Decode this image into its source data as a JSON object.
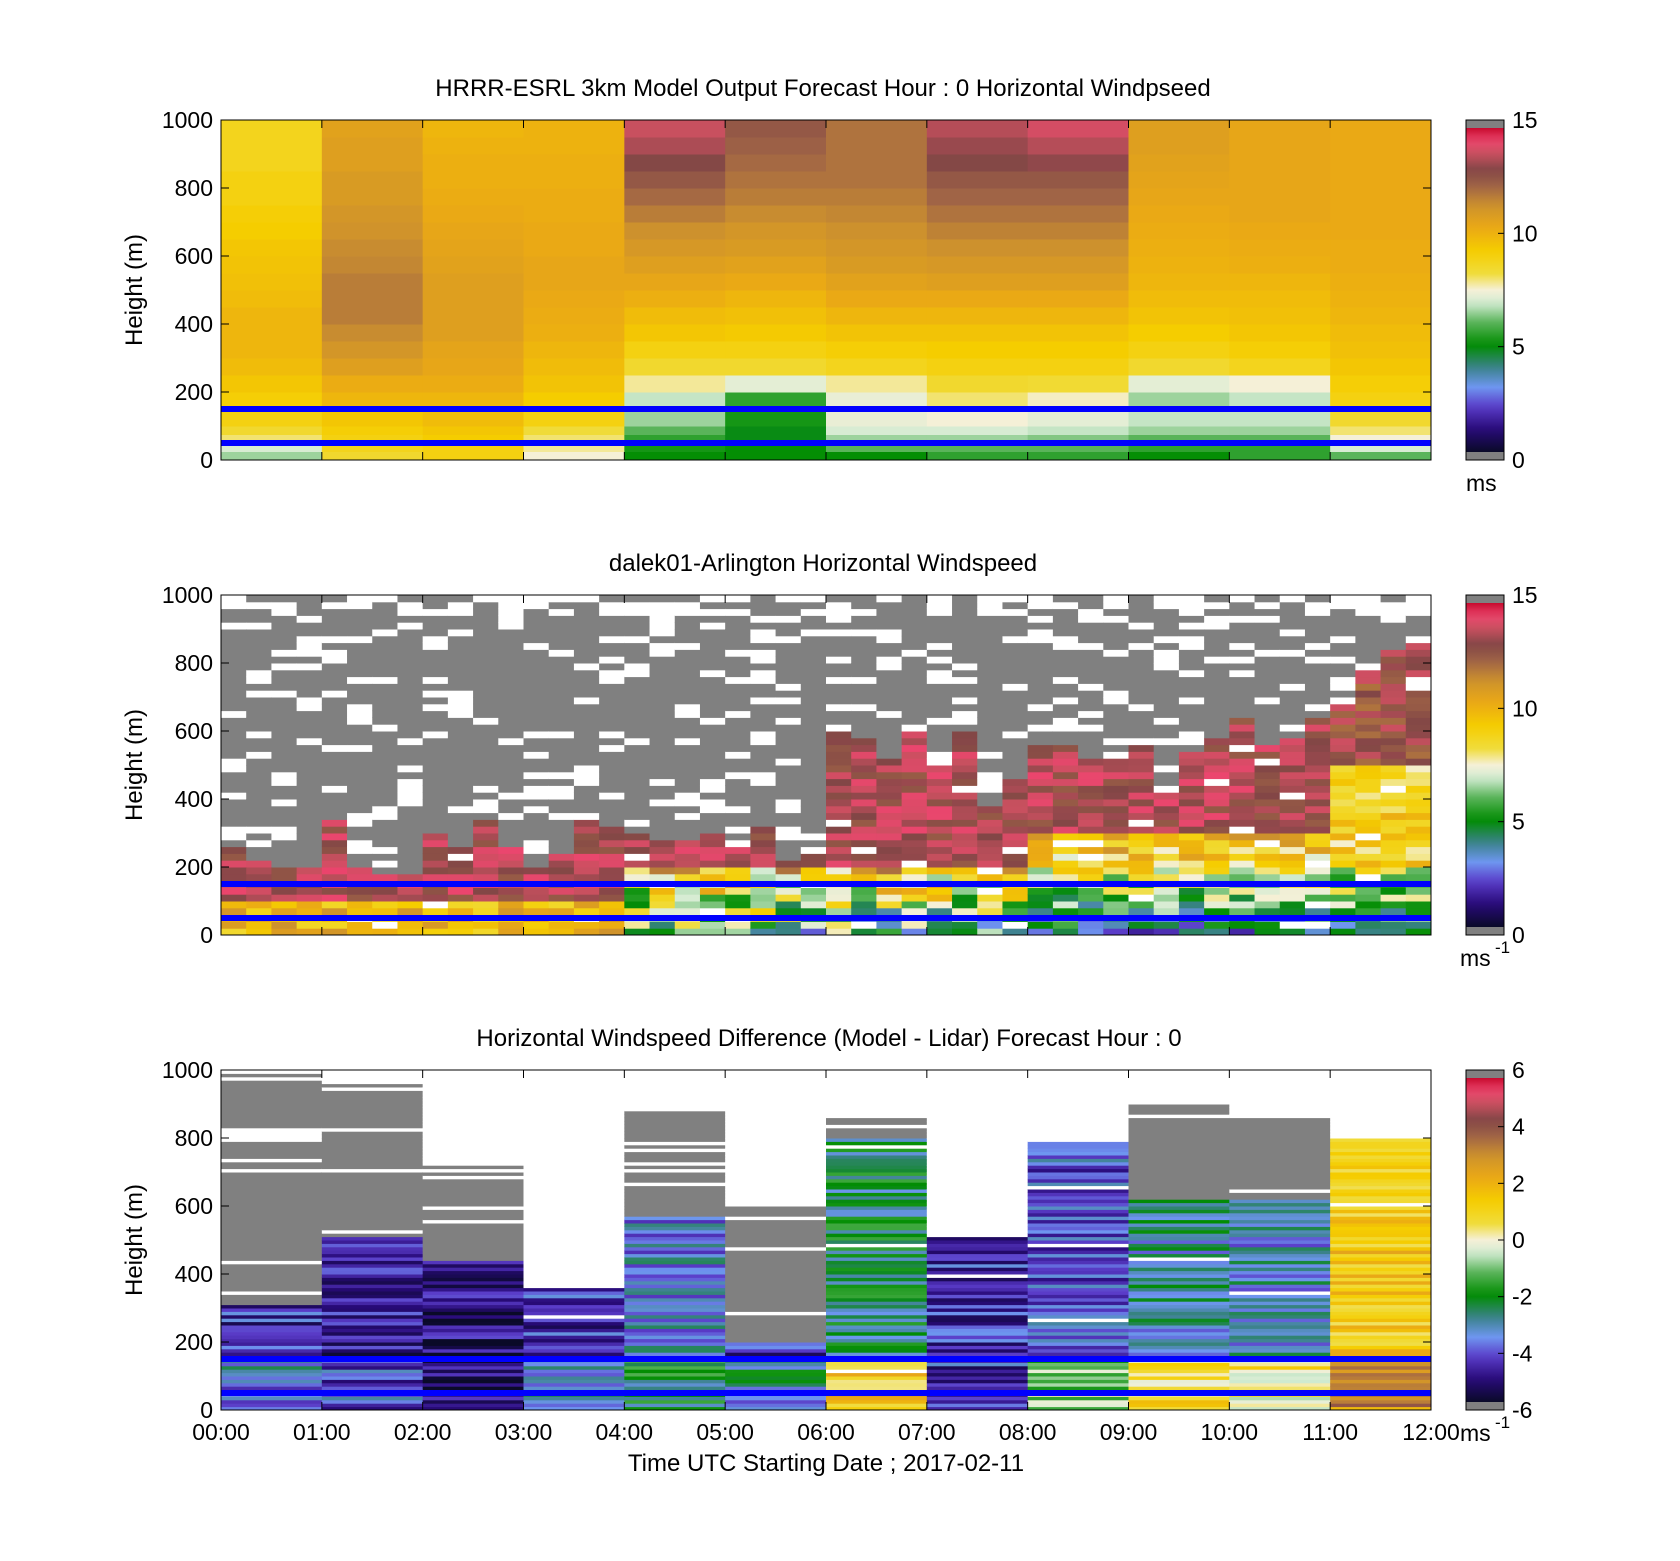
{
  "figure": {
    "xlabel": "Time UTC  Starting Date ; 2017-02-11",
    "xticks": [
      "00:00",
      "01:00",
      "02:00",
      "03:00",
      "04:00",
      "05:00",
      "06:00",
      "07:00",
      "08:00",
      "09:00",
      "10:00",
      "11:00",
      "12:00"
    ],
    "x_range_hours": [
      0,
      12
    ],
    "reference_lines_height_m": [
      150,
      50
    ],
    "reference_line_color": "#0000ff"
  },
  "chart_data": [
    {
      "type": "heatmap",
      "title": "HRRR-ESRL 3km Model Output   Forecast Hour : 0 Horizontal Windpseed",
      "ylabel": "Height (m)",
      "ylim": [
        0,
        1000
      ],
      "yticks": [
        "0",
        "200",
        "400",
        "600",
        "800",
        "1000"
      ],
      "colorbar": {
        "range": [
          0,
          15
        ],
        "ticks": [
          "0",
          "5",
          "10",
          "15"
        ],
        "unit": "ms"
      },
      "x_hours": [
        0,
        1,
        2,
        3,
        4,
        5,
        6,
        7,
        8,
        9,
        10,
        11
      ],
      "heights_m": [
        25,
        50,
        75,
        100,
        150,
        200,
        250,
        300,
        350,
        400,
        450,
        500,
        550,
        600,
        650,
        700,
        750,
        800,
        850,
        900,
        950,
        1000
      ],
      "values_ms": [
        [
          6.5,
          8.5,
          9.0,
          7.5,
          5.0,
          5.0,
          5.0,
          5.5,
          5.5,
          5.0,
          5.5,
          6.0
        ],
        [
          7.0,
          8.8,
          9.0,
          7.8,
          5.2,
          5.0,
          6.0,
          6.0,
          6.0,
          5.5,
          5.5,
          7.0
        ],
        [
          8.0,
          9.0,
          9.3,
          8.0,
          5.5,
          4.8,
          6.5,
          6.5,
          6.3,
          6.0,
          6.0,
          7.5
        ],
        [
          8.5,
          9.2,
          9.5,
          8.3,
          6.0,
          4.8,
          7.0,
          7.0,
          6.8,
          6.5,
          6.5,
          8.0
        ],
        [
          9.0,
          9.5,
          9.8,
          9.0,
          6.5,
          5.2,
          7.3,
          7.5,
          7.2,
          6.8,
          6.8,
          8.5
        ],
        [
          9.2,
          10.0,
          10.0,
          9.3,
          6.8,
          5.5,
          7.3,
          8.0,
          7.6,
          6.5,
          6.8,
          9.0
        ],
        [
          9.5,
          10.3,
          10.3,
          9.6,
          7.8,
          7.2,
          7.8,
          8.5,
          8.4,
          7.2,
          7.5,
          9.2
        ],
        [
          9.8,
          10.8,
          10.5,
          9.8,
          8.5,
          8.5,
          8.8,
          9.0,
          9.0,
          8.5,
          8.8,
          9.5
        ],
        [
          10.0,
          11.2,
          10.6,
          10.0,
          9.0,
          9.0,
          9.2,
          9.3,
          9.3,
          9.0,
          9.2,
          9.7
        ],
        [
          10.0,
          11.5,
          10.8,
          10.2,
          9.5,
          9.4,
          9.6,
          9.6,
          9.6,
          9.3,
          9.5,
          9.8
        ],
        [
          10.0,
          11.8,
          10.8,
          10.3,
          9.8,
          9.7,
          10.0,
          10.0,
          10.0,
          9.6,
          9.7,
          10.0
        ],
        [
          9.8,
          11.8,
          10.8,
          10.4,
          10.2,
          10.0,
          10.4,
          10.4,
          10.4,
          9.8,
          9.8,
          10.1
        ],
        [
          9.7,
          11.8,
          10.8,
          10.5,
          10.5,
          10.4,
          10.7,
          10.8,
          10.8,
          10.0,
          10.0,
          10.2
        ],
        [
          9.6,
          11.6,
          10.7,
          10.5,
          10.8,
          10.7,
          11.0,
          11.1,
          11.1,
          10.1,
          10.2,
          10.3
        ],
        [
          9.5,
          11.5,
          10.6,
          10.4,
          11.1,
          11.0,
          11.2,
          11.4,
          11.4,
          10.2,
          10.3,
          10.3
        ],
        [
          9.3,
          11.3,
          10.5,
          10.4,
          11.4,
          11.2,
          11.4,
          11.7,
          11.7,
          10.3,
          10.4,
          10.4
        ],
        [
          9.2,
          11.2,
          10.4,
          10.3,
          11.8,
          11.5,
          11.6,
          12.0,
          12.0,
          10.4,
          10.5,
          10.4
        ],
        [
          9.0,
          11.0,
          10.3,
          10.3,
          12.2,
          11.8,
          11.8,
          12.3,
          12.3,
          10.5,
          10.5,
          10.4
        ],
        [
          9.0,
          11.0,
          10.2,
          10.2,
          12.6,
          12.0,
          12.0,
          12.6,
          12.6,
          10.6,
          10.5,
          10.4
        ],
        [
          8.8,
          10.8,
          10.2,
          10.2,
          13.0,
          12.2,
          12.0,
          13.0,
          13.2,
          10.7,
          10.5,
          10.4
        ],
        [
          8.8,
          10.8,
          10.1,
          10.1,
          13.5,
          12.4,
          12.0,
          13.3,
          13.6,
          10.8,
          10.5,
          10.4
        ],
        [
          8.8,
          10.7,
          10.0,
          10.1,
          13.8,
          12.6,
          12.0,
          13.6,
          14.0,
          10.8,
          10.5,
          10.4
        ]
      ]
    },
    {
      "type": "heatmap",
      "title": "dalek01-Arlington  Horizontal Windspeed",
      "ylabel": "Height (m)",
      "ylim": [
        0,
        1000
      ],
      "yticks": [
        "0",
        "200",
        "400",
        "600",
        "800",
        "1000"
      ],
      "colorbar": {
        "range": [
          0,
          15
        ],
        "ticks": [
          "0",
          "5",
          "10",
          "15"
        ],
        "unit": "ms",
        "unit_exponent": "-1"
      },
      "bin_minutes": 15,
      "data_top_m": [
        260,
        220,
        200,
        200,
        330,
        200,
        180,
        170,
        300,
        260,
        330,
        250,
        200,
        240,
        340,
        310,
        300,
        280,
        280,
        290,
        250,
        320,
        220,
        240,
        610,
        580,
        510,
        600,
        500,
        590,
        380,
        460,
        550,
        560,
        520,
        510,
        550,
        410,
        530,
        570,
        640,
        560,
        580,
        640,
        670,
        770,
        830,
        880
      ],
      "high_speed_zone_top_m": [
        260,
        220,
        200,
        200,
        330,
        200,
        180,
        170,
        300,
        260,
        330,
        250,
        200,
        240,
        340,
        310,
        300,
        280,
        280,
        290,
        250,
        320,
        220,
        240,
        610,
        580,
        510,
        600,
        500,
        590,
        380,
        460,
        550,
        560,
        520,
        510,
        550,
        410,
        530,
        570,
        640,
        560,
        580,
        640,
        670,
        770,
        830,
        880
      ],
      "profile_ms": {
        "hours_0_3": {
          "near_surface": 10,
          "above_100m": 13.5
        },
        "hours_4_7": {
          "near_surface": 5,
          "above_200m": 13.5
        },
        "hours_8_10": {
          "near_surface": 3.5,
          "above_300m": 13.5
        },
        "hours_11_12": {
          "near_surface": 4,
          "200_to_500m": 9,
          "above_600m": 13
        }
      }
    },
    {
      "type": "heatmap",
      "title": "Horizontal Windspeed Difference (Model - Lidar) Forecast Hour : 0",
      "ylabel": "Height (m)",
      "ylim": [
        0,
        1000
      ],
      "yticks": [
        "0",
        "200",
        "400",
        "600",
        "800",
        "1000"
      ],
      "colorbar": {
        "range": [
          -6,
          6
        ],
        "ticks": [
          "-6",
          "-4",
          "-2",
          "0",
          "2",
          "4",
          "6"
        ],
        "unit": "ms",
        "unit_exponent": "-1"
      },
      "x_hours": [
        0,
        1,
        2,
        3,
        4,
        5,
        6,
        7,
        8,
        9,
        10,
        11
      ],
      "valid_top_m": [
        310,
        510,
        440,
        360,
        570,
        200,
        800,
        510,
        790,
        620,
        620,
        800
      ],
      "missing_above_top_m": [
        990,
        960,
        720,
        360,
        890,
        600,
        860,
        510,
        790,
        900,
        860,
        800
      ],
      "column_mean_diff_ms": [
        -4.5,
        -4.8,
        -5.2,
        -4.5,
        -3.5,
        -4.5,
        -2.5,
        -4.5,
        -4.0,
        -3.0,
        -3.2,
        1.5
      ],
      "surface_diff_ms": [
        -3.5,
        -4.0,
        -5.0,
        -3.5,
        -2.5,
        -3.0,
        1.5,
        -4.5,
        -1.0,
        1.0,
        0.5,
        3.0
      ]
    }
  ]
}
